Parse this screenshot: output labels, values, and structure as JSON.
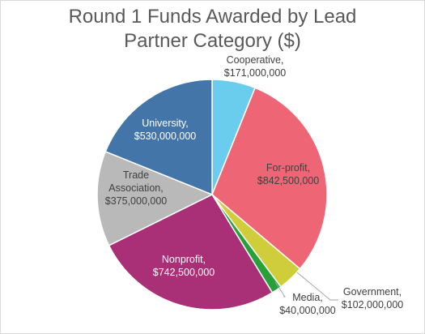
{
  "chart_data": {
    "type": "pie",
    "title": [
      "Round 1 Funds Awarded by Lead",
      "Partner Category ($)"
    ],
    "slices": [
      {
        "name": "Cooperative",
        "label": [
          "Cooperative,",
          "$171,000,000"
        ],
        "value": 171000000,
        "color": "#6bcdee"
      },
      {
        "name": "For-profit",
        "label": [
          "For-profit,",
          "$842,500,000"
        ],
        "value": 842500000,
        "color": "#ee6676"
      },
      {
        "name": "Government",
        "label": [
          "Government,",
          "$102,000,000"
        ],
        "value": 102000000,
        "color": "#cfce3a"
      },
      {
        "name": "Media",
        "label": [
          "Media,",
          "$40,000,000"
        ],
        "value": 40000000,
        "color": "#28a039"
      },
      {
        "name": "Nonprofit",
        "label": [
          "Nonprofit,",
          "$742,500,000"
        ],
        "value": 742500000,
        "color": "#a93076"
      },
      {
        "name": "Trade Association",
        "label": [
          "Trade",
          "Association,",
          "$375,000,000"
        ],
        "value": 375000000,
        "color": "#b9b9b9"
      },
      {
        "name": "University",
        "label": [
          "University,",
          "$530,000,000"
        ],
        "value": 530000000,
        "color": "#4375a9"
      }
    ],
    "start_angle": "12 o'clock",
    "direction": "clockwise",
    "legend": "none"
  }
}
